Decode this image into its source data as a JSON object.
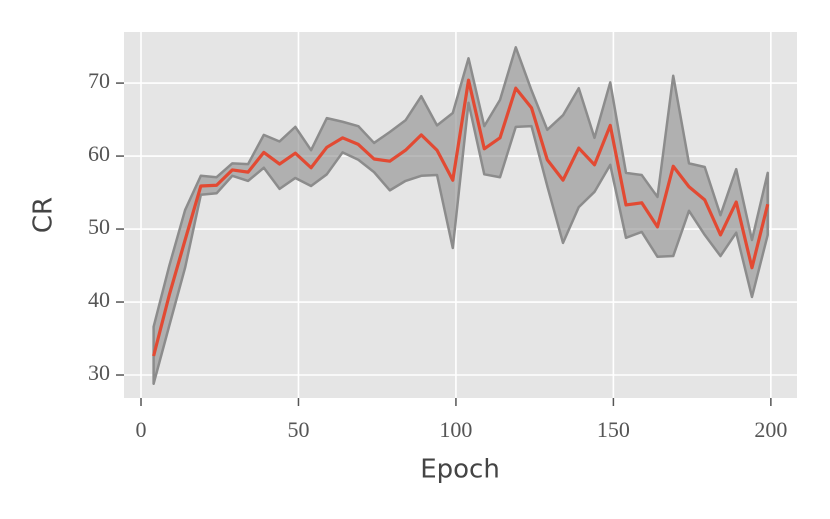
{
  "chart_data": {
    "type": "line",
    "xlabel": "Epoch",
    "ylabel": "CR",
    "x": [
      4,
      9,
      14,
      19,
      24,
      29,
      34,
      39,
      44,
      49,
      54,
      59,
      64,
      69,
      74,
      79,
      84,
      89,
      94,
      99,
      104,
      109,
      114,
      119,
      124,
      129,
      134,
      139,
      144,
      149,
      154,
      159,
      164,
      169,
      174,
      179,
      184,
      189,
      194,
      199
    ],
    "series": [
      {
        "color": "#e24a33",
        "values": [
          32.6,
          41,
          48.5,
          55.9,
          56,
          58.1,
          57.8,
          60.5,
          58.9,
          60.4,
          58.4,
          61.2,
          62.5,
          61.6,
          59.6,
          59.3,
          60.8,
          62.9,
          60.8,
          56.7,
          70.4,
          61,
          62.5,
          69.3,
          66.6,
          59.5,
          56.7,
          61.1,
          58.8,
          64.2,
          53.3,
          53.6,
          50.3,
          58.6,
          55.8,
          54,
          49.2,
          53.7,
          44.7,
          53.4
        ]
      }
    ],
    "band": {
      "color": "#8c8c8c",
      "upper": [
        36.6,
        45,
        52.6,
        57.3,
        57.1,
        59,
        58.9,
        62.9,
        62,
        64,
        60.8,
        65.2,
        64.7,
        64.1,
        61.8,
        63.3,
        64.9,
        68.2,
        64.2,
        65.9,
        73.4,
        64.1,
        67.7,
        74.9,
        69,
        63.6,
        65.6,
        69.3,
        62.5,
        70.1,
        57.7,
        57.4,
        54.4,
        71,
        59,
        58.5,
        51.9,
        58.2,
        48.5,
        57.7
      ],
      "lower": [
        28.8,
        36.8,
        44.7,
        54.7,
        54.9,
        57.3,
        56.6,
        58.4,
        55.5,
        57,
        55.9,
        57.5,
        60.5,
        59.5,
        57.8,
        55.3,
        56.6,
        57.3,
        57.4,
        47.4,
        67.3,
        57.5,
        57.1,
        64,
        64.1,
        55.9,
        48.1,
        53,
        55.1,
        58.8,
        48.8,
        49.6,
        46.2,
        46.3,
        52.5,
        49.2,
        46.3,
        49.5,
        40.7,
        49.2
      ]
    },
    "xlim": [
      -5.4,
      208.3
    ],
    "ylim": [
      26.85,
      77.0
    ],
    "xticks": [
      0,
      50,
      100,
      150,
      200
    ],
    "yticks": [
      30,
      40,
      50,
      60,
      70
    ],
    "grid": true
  }
}
